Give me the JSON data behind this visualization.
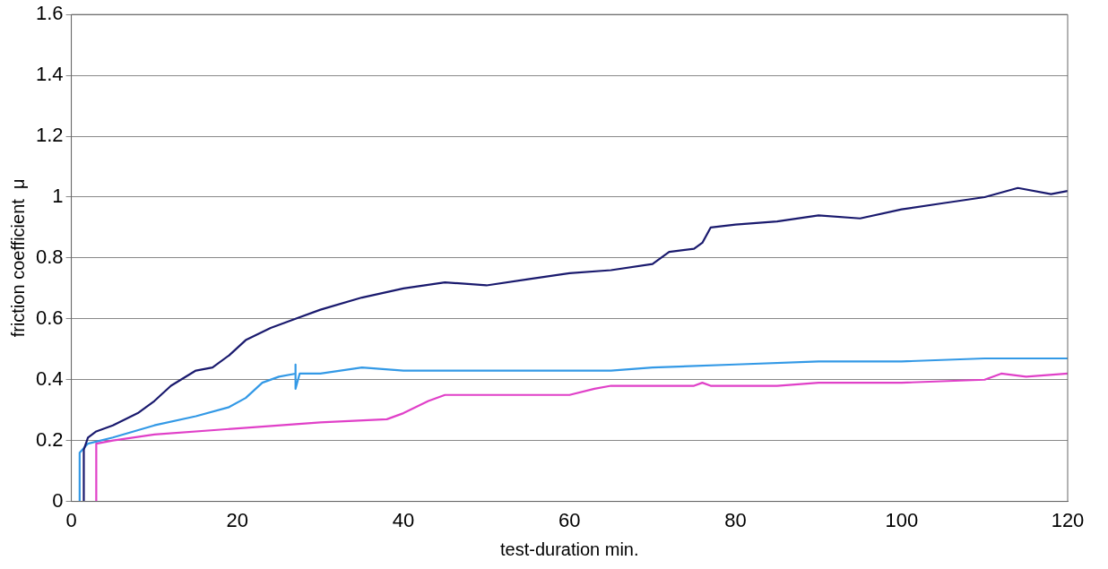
{
  "chart_data": {
    "type": "line",
    "xlabel": "test-duration min.",
    "ylabel": "friction coefficient  μ",
    "xlim": [
      0,
      120
    ],
    "xticks": [
      0,
      20,
      40,
      60,
      80,
      100,
      120
    ],
    "ylim": [
      0,
      1.6
    ],
    "yticks": [
      0,
      0.2,
      0.4,
      0.6,
      0.8,
      1,
      1.2,
      1.4,
      1.6
    ],
    "grid": "y",
    "marker": "none",
    "line_style": "solid",
    "series": [
      {
        "color": "#1a1a6e",
        "x": [
          1.5,
          1.5,
          2,
          3,
          5,
          8,
          10,
          12,
          15,
          17,
          19,
          21,
          24,
          27,
          30,
          35,
          40,
          45,
          50,
          55,
          60,
          65,
          70,
          72,
          75,
          76,
          77,
          80,
          85,
          90,
          95,
          100,
          105,
          110,
          114,
          118,
          120
        ],
        "values": [
          0,
          0.17,
          0.21,
          0.23,
          0.25,
          0.29,
          0.33,
          0.38,
          0.43,
          0.44,
          0.48,
          0.53,
          0.57,
          0.6,
          0.63,
          0.67,
          0.7,
          0.72,
          0.71,
          0.73,
          0.75,
          0.76,
          0.78,
          0.82,
          0.83,
          0.85,
          0.9,
          0.91,
          0.92,
          0.94,
          0.93,
          0.96,
          0.98,
          1,
          1.03,
          1.01,
          1.02
        ]
      },
      {
        "color": "#3399e6",
        "x": [
          1,
          1,
          2,
          5,
          10,
          15,
          19,
          21,
          23,
          25,
          27,
          27,
          27,
          27.5,
          30,
          35,
          40,
          45,
          50,
          60,
          65,
          70,
          80,
          90,
          100,
          110,
          120
        ],
        "values": [
          0,
          0.16,
          0.19,
          0.21,
          0.25,
          0.28,
          0.31,
          0.34,
          0.39,
          0.41,
          0.42,
          0.45,
          0.37,
          0.42,
          0.42,
          0.44,
          0.43,
          0.43,
          0.43,
          0.43,
          0.43,
          0.44,
          0.45,
          0.46,
          0.46,
          0.47,
          0.47
        ]
      },
      {
        "color": "#e040c8",
        "x": [
          3,
          3,
          5,
          10,
          20,
          30,
          38,
          40,
          43,
          45,
          50,
          55,
          60,
          63,
          65,
          70,
          75,
          76,
          77,
          85,
          90,
          100,
          110,
          112,
          115,
          120
        ],
        "values": [
          0,
          0.19,
          0.2,
          0.22,
          0.24,
          0.26,
          0.27,
          0.29,
          0.33,
          0.35,
          0.35,
          0.35,
          0.35,
          0.37,
          0.38,
          0.38,
          0.38,
          0.39,
          0.38,
          0.38,
          0.39,
          0.39,
          0.4,
          0.42,
          0.41,
          0.42
        ]
      }
    ]
  }
}
